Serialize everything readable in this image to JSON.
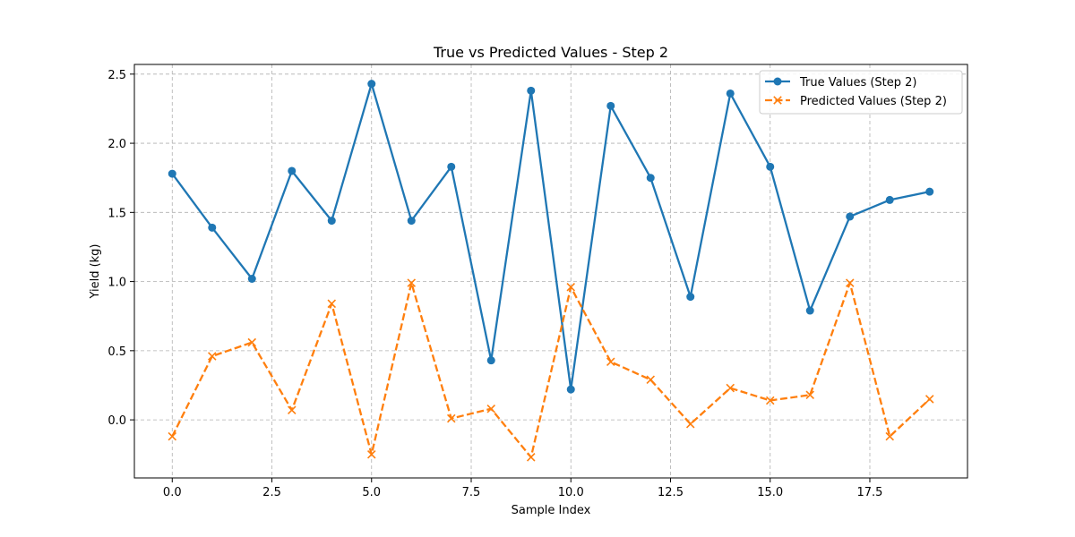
{
  "chart_data": {
    "type": "line",
    "title": "True vs Predicted Values - Step 2",
    "xlabel": "Sample Index",
    "ylabel": "Yield (kg)",
    "x": [
      0,
      1,
      2,
      3,
      4,
      5,
      6,
      7,
      8,
      9,
      10,
      11,
      12,
      13,
      14,
      15,
      16,
      17,
      18,
      19
    ],
    "xlim": [
      -0.95,
      19.95
    ],
    "ylim": [
      -0.42,
      2.57
    ],
    "xticks": [
      0.0,
      2.5,
      5.0,
      7.5,
      10.0,
      12.5,
      15.0,
      17.5
    ],
    "xtick_labels": [
      "0.0",
      "2.5",
      "5.0",
      "7.5",
      "10.0",
      "12.5",
      "15.0",
      "17.5"
    ],
    "yticks": [
      0.0,
      0.5,
      1.0,
      1.5,
      2.0,
      2.5
    ],
    "ytick_labels": [
      "0.0",
      "0.5",
      "1.0",
      "1.5",
      "2.0",
      "2.5"
    ],
    "grid": true,
    "legend_position": "top-right",
    "series": [
      {
        "name": "True Values (Step 2)",
        "color": "#1f77b4",
        "marker": "circle",
        "linestyle": "solid",
        "values": [
          1.78,
          1.39,
          1.02,
          1.8,
          1.44,
          2.43,
          1.44,
          1.83,
          0.43,
          2.38,
          0.22,
          2.27,
          1.75,
          0.89,
          2.36,
          1.83,
          0.79,
          1.47,
          1.59,
          1.65
        ]
      },
      {
        "name": "Predicted Values (Step 2)",
        "color": "#ff7f0e",
        "marker": "x",
        "linestyle": "dashed",
        "values": [
          -0.12,
          0.46,
          0.56,
          0.07,
          0.84,
          -0.25,
          0.99,
          0.01,
          0.08,
          -0.27,
          0.96,
          0.42,
          0.29,
          -0.03,
          0.23,
          0.14,
          0.18,
          0.99,
          -0.12,
          0.15
        ]
      }
    ]
  }
}
